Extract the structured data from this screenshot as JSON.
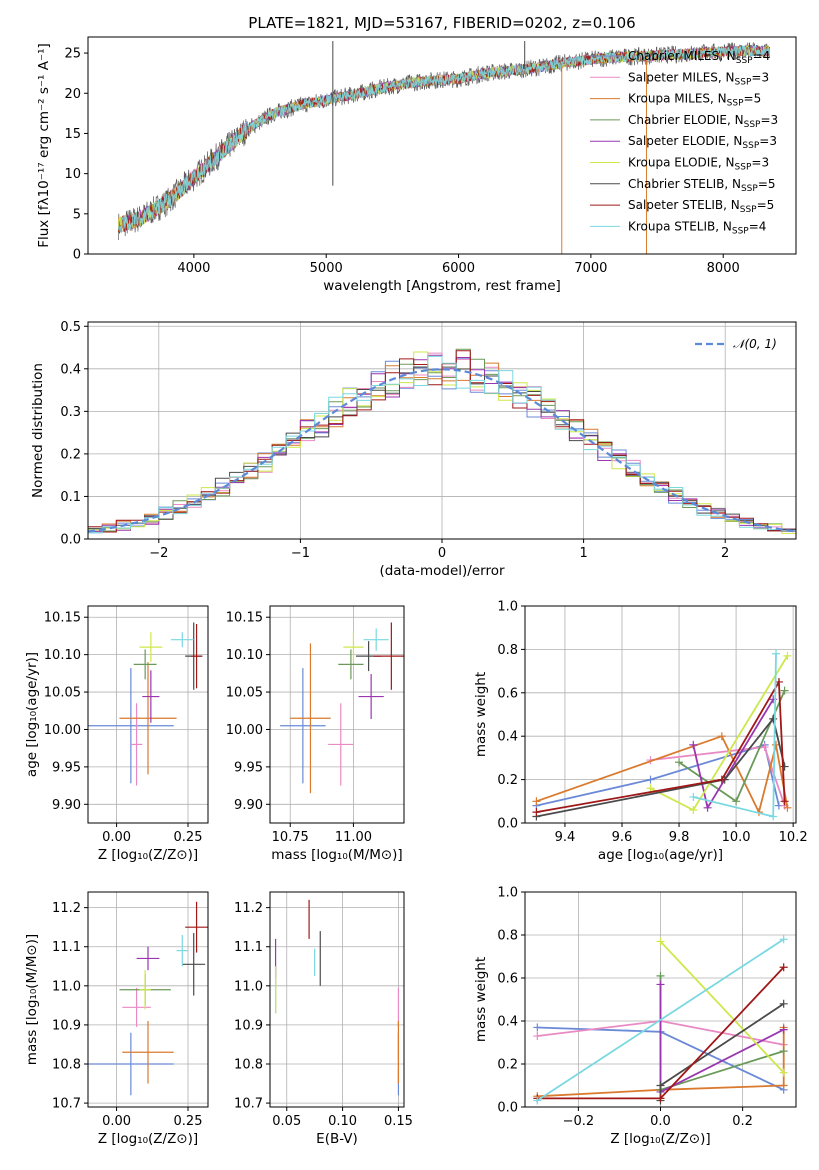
{
  "figure": {
    "title": "PLATE=1821, MJD=53167, FIBERID=0202, z=0.106"
  },
  "models": [
    {
      "name": "Chabrier MILES",
      "nssp": "4",
      "color": "#6a8ad8"
    },
    {
      "name": "Salpeter MILES",
      "nssp": "3",
      "color": "#e98ac5"
    },
    {
      "name": "Kroupa MILES",
      "nssp": "5",
      "color": "#d97a2e"
    },
    {
      "name": "Chabrier ELODIE",
      "nssp": "3",
      "color": "#6a9a5a"
    },
    {
      "name": "Salpeter ELODIE",
      "nssp": "3",
      "color": "#9a36b0"
    },
    {
      "name": "Kroupa ELODIE",
      "nssp": "3",
      "color": "#cde84a"
    },
    {
      "name": "Chabrier STELIB",
      "nssp": "5",
      "color": "#4a4a4a"
    },
    {
      "name": "Salpeter STELIB",
      "nssp": "5",
      "color": "#a01818"
    },
    {
      "name": "Kroupa STELIB",
      "nssp": "4",
      "color": "#7ad8e0"
    }
  ],
  "chart_data": [
    {
      "id": "spectrum",
      "type": "line",
      "title": "PLATE=1821, MJD=53167, FIBERID=0202, z=0.106",
      "xlabel": "wavelength [Angstrom, rest frame]",
      "ylabel": "Flux [fλ10⁻¹⁷ erg cm⁻² s⁻¹ A⁻¹]",
      "xlim": [
        3200,
        8550
      ],
      "ylim": [
        0,
        27
      ],
      "xticks": [
        4000,
        5000,
        6000,
        7000,
        8000
      ],
      "yticks": [
        0,
        5,
        10,
        15,
        20,
        25
      ],
      "continuum": {
        "x": [
          3430,
          3600,
          3800,
          4000,
          4200,
          4400,
          4600,
          4800,
          5000,
          5200,
          5400,
          5600,
          5800,
          6000,
          6200,
          6400,
          6600,
          6800,
          7000,
          7200,
          7400,
          7600,
          7800,
          8000,
          8200,
          8350
        ],
        "y": [
          3.5,
          4.5,
          6.5,
          9.5,
          12.5,
          15.5,
          17.5,
          18.5,
          19.2,
          19.8,
          20.6,
          21.2,
          21.6,
          21.8,
          22.5,
          22.8,
          23.2,
          23.8,
          24.2,
          24.5,
          24.6,
          24.8,
          25,
          25.2,
          25.3,
          25.2
        ]
      },
      "spikes": [
        {
          "x": 5050,
          "y": 26.5
        },
        {
          "x": 5050,
          "y": 8.5
        },
        {
          "x": 6780,
          "y": 0
        },
        {
          "x": 7420,
          "y": 0
        },
        {
          "x": 6500,
          "y": 26.5
        }
      ],
      "legend": "upper right"
    },
    {
      "id": "residuals",
      "type": "histogram",
      "xlabel": "(data-model)/error",
      "ylabel": "Normed distribution",
      "xlim": [
        -2.5,
        2.5
      ],
      "ylim": [
        0,
        0.51
      ],
      "xticks": [
        -2,
        -1,
        0,
        1,
        2
      ],
      "yticks": [
        0.0,
        0.1,
        0.2,
        0.3,
        0.4,
        0.5
      ],
      "bin_width": 0.1,
      "normal_label": "𝒩(0, 1)",
      "grid": true,
      "legend": "upper right"
    },
    {
      "id": "age_vs_Z",
      "type": "errorbar",
      "xlabel": "Z [log₁₀(Z/Z⊙)]",
      "ylabel": "age  [log₁₀(age/yr)]",
      "xlim": [
        -0.1,
        0.32
      ],
      "ylim": [
        9.875,
        10.165
      ],
      "xticks": [
        0.0,
        0.25
      ],
      "yticks": [
        9.9,
        9.95,
        10.0,
        10.05,
        10.1,
        10.15
      ],
      "points": [
        {
          "x": 0.05,
          "y": 10.005,
          "xerr": 0.15,
          "yerr": 0.077
        },
        {
          "x": 0.07,
          "y": 9.98,
          "xerr": 0.02,
          "yerr": 0.055
        },
        {
          "x": 0.11,
          "y": 10.015,
          "xerr": 0.1,
          "yerr": 0.075
        },
        {
          "x": 0.1,
          "y": 10.087,
          "xerr": 0.04,
          "yerr": 0.02
        },
        {
          "x": 0.12,
          "y": 10.044,
          "xerr": 0.03,
          "yerr": 0.035
        },
        {
          "x": 0.12,
          "y": 10.11,
          "xerr": 0.04,
          "yerr": 0.02
        },
        {
          "x": 0.27,
          "y": 10.098,
          "xerr": 0.03,
          "yerr": 0.045
        },
        {
          "x": 0.28,
          "y": 10.098,
          "xerr": 0.02,
          "yerr": 0.043
        },
        {
          "x": 0.23,
          "y": 10.12,
          "xerr": 0.04,
          "yerr": 0.01
        }
      ]
    },
    {
      "id": "age_vs_mass",
      "type": "errorbar",
      "xlabel": "mass [log₁₀(M/M⊙)]",
      "ylabel": "",
      "xlim": [
        10.67,
        11.2
      ],
      "ylim": [
        9.875,
        10.165
      ],
      "xticks": [
        10.75,
        11.0
      ],
      "yticks": [
        9.9,
        9.95,
        10.0,
        10.05,
        10.1,
        10.15
      ],
      "points": [
        {
          "x": 10.8,
          "y": 10.005,
          "xerr": 0.09,
          "yerr": 0.077
        },
        {
          "x": 10.95,
          "y": 9.98,
          "xerr": 0.05,
          "yerr": 0.055
        },
        {
          "x": 10.83,
          "y": 10.015,
          "xerr": 0.08,
          "yerr": 0.1
        },
        {
          "x": 10.99,
          "y": 10.087,
          "xerr": 0.05,
          "yerr": 0.02
        },
        {
          "x": 11.07,
          "y": 10.044,
          "xerr": 0.05,
          "yerr": 0.03
        },
        {
          "x": 11.0,
          "y": 10.11,
          "xerr": 0.04,
          "yerr": 0.02
        },
        {
          "x": 11.06,
          "y": 10.098,
          "xerr": 0.05,
          "yerr": 0.02
        },
        {
          "x": 11.15,
          "y": 10.098,
          "xerr": 0.07,
          "yerr": 0.045
        },
        {
          "x": 11.09,
          "y": 10.12,
          "xerr": 0.05,
          "yerr": 0.015
        }
      ]
    },
    {
      "id": "massweight_vs_age",
      "type": "line",
      "xlabel": "age  [log₁₀(age/yr)]",
      "ylabel": "mass weight",
      "xlim": [
        9.26,
        10.21
      ],
      "ylim": [
        0,
        1
      ],
      "xticks": [
        9.4,
        9.6,
        9.8,
        10.0,
        10.2
      ],
      "yticks": [
        0.0,
        0.2,
        0.4,
        0.6,
        0.8,
        1.0
      ],
      "series": [
        {
          "x": [
            9.3,
            9.7,
            10.1,
            10.15
          ],
          "y": [
            0.08,
            0.2,
            0.36,
            0.08
          ]
        },
        {
          "x": [
            9.7,
            10.1,
            10.17
          ],
          "y": [
            0.29,
            0.35,
            0.08
          ]
        },
        {
          "x": [
            9.3,
            9.95,
            10.08,
            10.14,
            10.18
          ],
          "y": [
            0.1,
            0.4,
            0.05,
            0.36,
            0.07
          ]
        },
        {
          "x": [
            9.8,
            10.0,
            10.17
          ],
          "y": [
            0.28,
            0.1,
            0.61
          ]
        },
        {
          "x": [
            9.85,
            9.9,
            10.13
          ],
          "y": [
            0.36,
            0.07,
            0.57
          ]
        },
        {
          "x": [
            9.7,
            9.85,
            10.18
          ],
          "y": [
            0.16,
            0.06,
            0.77
          ]
        },
        {
          "x": [
            9.3,
            9.96,
            10.13,
            10.17
          ],
          "y": [
            0.03,
            0.2,
            0.48,
            0.26
          ]
        },
        {
          "x": [
            9.3,
            9.95,
            10.15,
            10.17
          ],
          "y": [
            0.05,
            0.2,
            0.65,
            0.1
          ]
        },
        {
          "x": [
            9.85,
            10.13,
            10.14
          ],
          "y": [
            0.12,
            0.03,
            0.78
          ]
        }
      ]
    },
    {
      "id": "mass_vs_Z",
      "type": "errorbar",
      "xlabel": "Z [log₁₀(Z/Z⊙)]",
      "ylabel": "mass [log₁₀(M/M⊙)]",
      "xlim": [
        -0.1,
        0.32
      ],
      "ylim": [
        10.69,
        11.24
      ],
      "xticks": [
        0.0,
        0.25
      ],
      "yticks": [
        10.7,
        10.8,
        10.9,
        11.0,
        11.1,
        11.2
      ],
      "points": [
        {
          "x": 0.05,
          "y": 10.8,
          "xerr": 0.15,
          "yerr": 0.08
        },
        {
          "x": 0.07,
          "y": 10.945,
          "xerr": 0.05,
          "yerr": 0.05
        },
        {
          "x": 0.11,
          "y": 10.83,
          "xerr": 0.09,
          "yerr": 0.08
        },
        {
          "x": 0.1,
          "y": 10.99,
          "xerr": 0.09,
          "yerr": 0.04
        },
        {
          "x": 0.11,
          "y": 11.07,
          "xerr": 0.04,
          "yerr": 0.03
        },
        {
          "x": 0.1,
          "y": 10.99,
          "xerr": 0.02,
          "yerr": 0.05
        },
        {
          "x": 0.27,
          "y": 11.055,
          "xerr": 0.04,
          "yerr": 0.08
        },
        {
          "x": 0.28,
          "y": 11.15,
          "xerr": 0.04,
          "yerr": 0.065
        },
        {
          "x": 0.23,
          "y": 11.09,
          "xerr": 0.02,
          "yerr": 0.04
        }
      ]
    },
    {
      "id": "mass_vs_ebv",
      "type": "errorbar",
      "xlabel": "E(B-V)",
      "ylabel": "",
      "xlim": [
        0.035,
        0.155
      ],
      "ylim": [
        10.69,
        11.24
      ],
      "xticks": [
        0.05,
        0.1,
        0.15
      ],
      "yticks": [
        10.7,
        10.8,
        10.9,
        11.0,
        11.1,
        11.2
      ],
      "points": [
        {
          "x": 0.15,
          "y": 10.8,
          "xerr": 0,
          "yerr": 0.08
        },
        {
          "x": 0.15,
          "y": 10.945,
          "xerr": 0,
          "yerr": 0.05
        },
        {
          "x": 0.15,
          "y": 10.83,
          "xerr": 0,
          "yerr": 0.08
        },
        {
          "x": 0.04,
          "y": 10.99,
          "xerr": 0,
          "yerr": 0.06
        },
        {
          "x": 0.04,
          "y": 11.07,
          "xerr": 0,
          "yerr": 0.05
        },
        {
          "x": 0.04,
          "y": 10.99,
          "xerr": 0,
          "yerr": 0.06
        },
        {
          "x": 0.08,
          "y": 11.07,
          "xerr": 0,
          "yerr": 0.07
        },
        {
          "x": 0.07,
          "y": 11.17,
          "xerr": 0,
          "yerr": 0.05
        },
        {
          "x": 0.075,
          "y": 11.06,
          "xerr": 0,
          "yerr": 0.035
        }
      ]
    },
    {
      "id": "massweight_vs_Z",
      "type": "line",
      "xlabel": "Z [log₁₀(Z/Z⊙)]",
      "ylabel": "mass weight",
      "xlim": [
        -0.33,
        0.33
      ],
      "ylim": [
        0,
        1
      ],
      "xticks": [
        -0.2,
        0.0,
        0.2
      ],
      "yticks": [
        0.0,
        0.2,
        0.4,
        0.6,
        0.8,
        1.0
      ],
      "series": [
        {
          "x": [
            -0.3,
            0.0,
            0.3
          ],
          "y": [
            0.37,
            0.35,
            0.08
          ]
        },
        {
          "x": [
            -0.3,
            0.0,
            0.3
          ],
          "y": [
            0.33,
            0.4,
            0.29
          ]
        },
        {
          "x": [
            -0.3,
            0.0,
            0.3,
            0.3
          ],
          "y": [
            0.05,
            0.08,
            0.1,
            0.37
          ]
        },
        {
          "x": [
            0.0,
            0.0,
            0.3
          ],
          "y": [
            0.61,
            0.08,
            0.26
          ]
        },
        {
          "x": [
            0.0,
            0.0,
            0.3
          ],
          "y": [
            0.57,
            0.07,
            0.36
          ]
        },
        {
          "x": [
            0.0,
            0.3
          ],
          "y": [
            0.77,
            0.16
          ]
        },
        {
          "x": [
            0.0,
            0.0,
            0.3
          ],
          "y": [
            0.03,
            0.1,
            0.48
          ]
        },
        {
          "x": [
            -0.3,
            0.0,
            0.3
          ],
          "y": [
            0.04,
            0.04,
            0.65
          ]
        },
        {
          "x": [
            -0.3,
            0.3
          ],
          "y": [
            0.03,
            0.78
          ]
        }
      ]
    }
  ]
}
